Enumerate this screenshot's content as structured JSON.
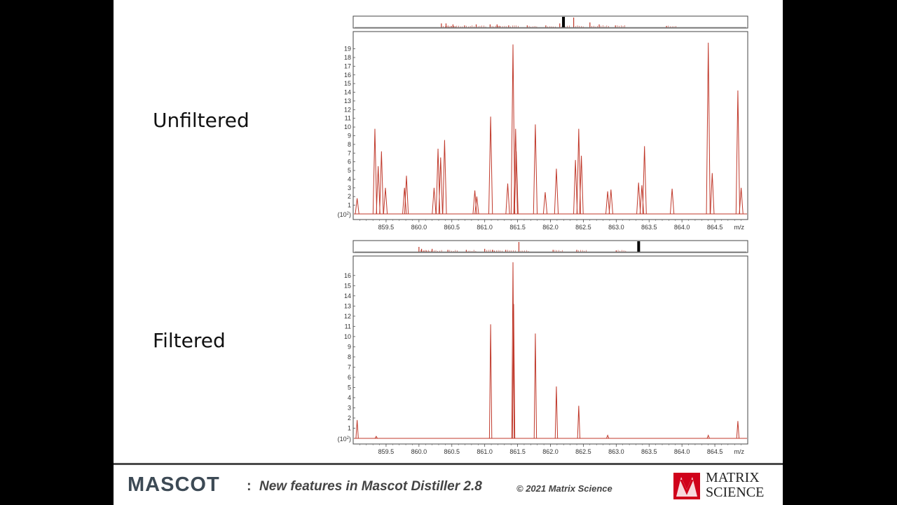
{
  "labels": {
    "top": "Unfiltered",
    "bottom": "Filtered"
  },
  "footer": {
    "brand": "MASCOT",
    "colon": ":",
    "title": "New features in Mascot Distiller 2.8",
    "copyright": "© 2021 Matrix Science",
    "logo_line1": "MATRIX",
    "logo_line2": "SCIENCE"
  },
  "colors": {
    "trace": "#c0392b",
    "axis": "#555555",
    "slide": "#ffffff",
    "background": "#000000"
  },
  "chart_data": [
    {
      "type": "line",
      "title": "Unfiltered",
      "xlabel": "m/z",
      "ylabel": "(10^2)",
      "ylabel_text": "(10",
      "ylabel_exp": "2",
      "ylabel_close": ")",
      "xlim": [
        859.0,
        865.0
      ],
      "ylim": [
        0,
        20.5
      ],
      "xticks": [
        "859.5",
        "860.0",
        "860.5",
        "861.0",
        "861.5",
        "862.0",
        "862.5",
        "863.0",
        "863.5",
        "864.0",
        "864.5"
      ],
      "yticks": [
        "1",
        "2",
        "3",
        "4",
        "5",
        "6",
        "7",
        "8",
        "9",
        "10",
        "11",
        "12",
        "13",
        "14",
        "15",
        "16",
        "17",
        "18",
        "19"
      ],
      "peaks": [
        {
          "x": 859.06,
          "y": 1.8
        },
        {
          "x": 859.33,
          "y": 9.8
        },
        {
          "x": 859.38,
          "y": 5.5
        },
        {
          "x": 859.43,
          "y": 7.2
        },
        {
          "x": 859.49,
          "y": 3.0
        },
        {
          "x": 859.81,
          "y": 4.4
        },
        {
          "x": 859.78,
          "y": 3.0
        },
        {
          "x": 860.23,
          "y": 3.0
        },
        {
          "x": 860.29,
          "y": 7.5
        },
        {
          "x": 860.33,
          "y": 6.5
        },
        {
          "x": 860.39,
          "y": 8.5
        },
        {
          "x": 860.85,
          "y": 2.7
        },
        {
          "x": 860.88,
          "y": 2.0
        },
        {
          "x": 861.09,
          "y": 11.2
        },
        {
          "x": 861.35,
          "y": 3.5
        },
        {
          "x": 861.43,
          "y": 19.5
        },
        {
          "x": 861.47,
          "y": 9.8
        },
        {
          "x": 861.48,
          "y": 7.2
        },
        {
          "x": 861.77,
          "y": 10.3
        },
        {
          "x": 861.92,
          "y": 2.5
        },
        {
          "x": 862.09,
          "y": 5.2
        },
        {
          "x": 862.38,
          "y": 6.2
        },
        {
          "x": 862.43,
          "y": 9.8
        },
        {
          "x": 862.47,
          "y": 6.7
        },
        {
          "x": 862.87,
          "y": 2.6
        },
        {
          "x": 862.92,
          "y": 2.8
        },
        {
          "x": 863.34,
          "y": 3.6
        },
        {
          "x": 863.39,
          "y": 3.3
        },
        {
          "x": 863.43,
          "y": 7.8
        },
        {
          "x": 863.85,
          "y": 2.9
        },
        {
          "x": 864.4,
          "y": 19.7
        },
        {
          "x": 864.46,
          "y": 4.7
        },
        {
          "x": 864.85,
          "y": 14.2
        },
        {
          "x": 864.9,
          "y": 3.0
        }
      ],
      "mini_profile": {
        "xlim": [
          853.0,
          870.0
        ],
        "markers": [
          {
            "x": 856.8,
            "h": 0.4
          },
          {
            "x": 857.0,
            "h": 0.4
          },
          {
            "x": 857.3,
            "h": 0.3
          },
          {
            "x": 857.8,
            "h": 0.2
          },
          {
            "x": 858.3,
            "h": 0.3
          },
          {
            "x": 858.9,
            "h": 0.3
          },
          {
            "x": 859.2,
            "h": 0.3
          },
          {
            "x": 859.7,
            "h": 0.2
          },
          {
            "x": 860.5,
            "h": 0.2
          },
          {
            "x": 861.3,
            "h": 0.2
          },
          {
            "x": 861.9,
            "h": 0.4
          },
          {
            "x": 862.5,
            "h": 1.0
          },
          {
            "x": 863.2,
            "h": 0.5
          },
          {
            "x": 863.6,
            "h": 0.3
          },
          {
            "x": 864.3,
            "h": 0.2
          },
          {
            "x": 866.5,
            "h": 0.15
          }
        ],
        "window": {
          "x": 862.0
        }
      }
    },
    {
      "type": "line",
      "title": "Filtered",
      "xlabel": "m/z",
      "ylabel": "(10^2)",
      "ylabel_text": "(10",
      "ylabel_exp": "2",
      "ylabel_close": ")",
      "xlim": [
        859.0,
        865.0
      ],
      "ylim": [
        0,
        17.5
      ],
      "xticks": [
        "859.5",
        "860.0",
        "860.5",
        "861.0",
        "861.5",
        "862.0",
        "862.5",
        "863.0",
        "863.5",
        "864.0",
        "864.5"
      ],
      "yticks": [
        "1",
        "2",
        "3",
        "4",
        "5",
        "6",
        "7",
        "8",
        "9",
        "10",
        "11",
        "12",
        "13",
        "14",
        "15",
        "16"
      ],
      "peaks": [
        {
          "x": 859.06,
          "y": 1.8
        },
        {
          "x": 859.35,
          "y": 0.2
        },
        {
          "x": 861.09,
          "y": 11.2
        },
        {
          "x": 861.43,
          "y": 17.3
        },
        {
          "x": 861.44,
          "y": 13.2
        },
        {
          "x": 861.77,
          "y": 10.3
        },
        {
          "x": 862.09,
          "y": 5.1
        },
        {
          "x": 862.43,
          "y": 3.2
        },
        {
          "x": 862.87,
          "y": 0.3
        },
        {
          "x": 864.4,
          "y": 0.3
        },
        {
          "x": 864.85,
          "y": 1.7
        }
      ],
      "mini_profile": {
        "xlim": [
          855.0,
          870.0
        ],
        "markers": [
          {
            "x": 857.5,
            "h": 0.5
          },
          {
            "x": 857.6,
            "h": 0.3
          },
          {
            "x": 858.0,
            "h": 0.3
          },
          {
            "x": 858.6,
            "h": 0.2
          },
          {
            "x": 859.3,
            "h": 0.2
          },
          {
            "x": 860.0,
            "h": 0.3
          },
          {
            "x": 860.3,
            "h": 0.2
          },
          {
            "x": 860.8,
            "h": 0.2
          },
          {
            "x": 861.3,
            "h": 1.0
          },
          {
            "x": 862.6,
            "h": 0.2
          },
          {
            "x": 863.5,
            "h": 0.2
          },
          {
            "x": 865.0,
            "h": 0.15
          }
        ],
        "window": {
          "x": 865.8
        }
      }
    }
  ]
}
